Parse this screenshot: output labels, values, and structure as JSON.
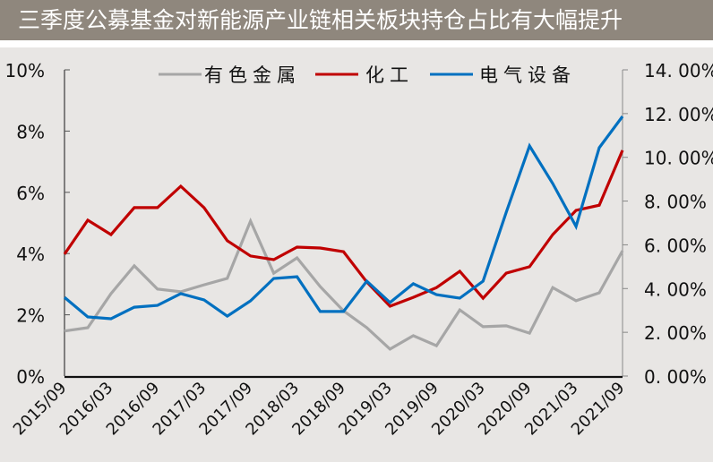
{
  "title": "三季度公募基金对新能源产业链相关板块持仓占比有大幅提升",
  "colors": {
    "title_bg": "#8f877d",
    "plot_bg": "#e8e6e4",
    "grey_series": "#a6a6a6",
    "red_series": "#c00000",
    "blue_series": "#0070c0"
  },
  "legend": [
    {
      "label": "有色金属",
      "color": "#a6a6a6"
    },
    {
      "label": "化工",
      "color": "#c00000"
    },
    {
      "label": "电气设备",
      "color": "#0070c0"
    }
  ],
  "axes": {
    "left_ticks": [
      "0%",
      "2%",
      "4%",
      "6%",
      "8%",
      "10%"
    ],
    "right_ticks": [
      "0.00%",
      "2.00%",
      "4.00%",
      "6.00%",
      "8.00%",
      "10.00%",
      "12.00%",
      "14.00%"
    ],
    "x_ticks": [
      "2015/09",
      "2016/03",
      "2016/09",
      "2017/03",
      "2017/09",
      "2018/03",
      "2018/09",
      "2019/03",
      "2019/09",
      "2020/03",
      "2020/09",
      "2021/03",
      "2021/09"
    ]
  },
  "chart_data": {
    "type": "line",
    "title": "三季度公募基金对新能源产业链相关板块持仓占比有大幅提升",
    "xlabel": "",
    "ylabel": "",
    "ylim_left": [
      0,
      10
    ],
    "ylim_right": [
      0,
      14
    ],
    "legend_position": "top",
    "grid": false,
    "x": [
      "2015/09",
      "2015/12",
      "2016/03",
      "2016/06",
      "2016/09",
      "2016/12",
      "2017/03",
      "2017/06",
      "2017/09",
      "2017/12",
      "2018/03",
      "2018/06",
      "2018/09",
      "2018/12",
      "2019/03",
      "2019/06",
      "2019/09",
      "2019/12",
      "2020/03",
      "2020/06",
      "2020/09",
      "2020/12",
      "2021/03",
      "2021/06",
      "2021/09"
    ],
    "series": [
      {
        "name": "有色金属",
        "axis": "left",
        "color": "#a6a6a6",
        "values": [
          1.47,
          1.58,
          2.69,
          3.6,
          2.84,
          2.75,
          2.98,
          3.19,
          5.06,
          3.36,
          3.86,
          2.92,
          2.13,
          1.58,
          0.88,
          1.32,
          0.99,
          2.16,
          1.61,
          1.64,
          1.4,
          2.89,
          2.46,
          2.72,
          4.09
        ]
      },
      {
        "name": "化工",
        "axis": "left",
        "color": "#c00000",
        "values": [
          3.98,
          5.09,
          4.62,
          5.5,
          5.5,
          6.2,
          5.5,
          4.42,
          3.92,
          3.8,
          4.21,
          4.18,
          4.06,
          3.07,
          2.28,
          2.57,
          2.89,
          3.42,
          2.54,
          3.36,
          3.57,
          4.62,
          5.41,
          5.58,
          7.37
        ]
      },
      {
        "name": "电气设备",
        "axis": "right",
        "color": "#0070c0",
        "values": [
          3.6,
          2.7,
          2.62,
          3.15,
          3.23,
          3.77,
          3.48,
          2.74,
          3.44,
          4.46,
          4.54,
          2.95,
          2.95,
          4.34,
          3.36,
          4.22,
          3.72,
          3.56,
          4.34,
          7.49,
          10.52,
          8.8,
          6.84,
          10.44,
          11.87
        ]
      }
    ]
  }
}
